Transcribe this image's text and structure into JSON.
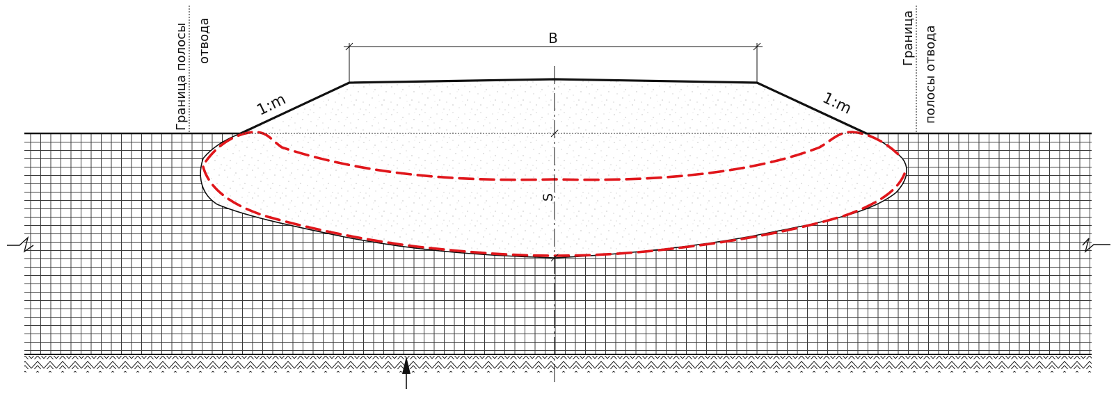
{
  "labels": {
    "width_b": "B",
    "slope_left": "1:m",
    "slope_right": "1:m",
    "settlement_s": "S",
    "left_boundary_line1": "Граница полосы",
    "left_boundary_line2": "отвода",
    "right_boundary_line1": "Граница",
    "right_boundary_line2": "полосы отвода"
  },
  "colors": {
    "outline": "#111111",
    "red_dashed": "#e0161b",
    "grid": "#444444",
    "fill_white": "#ffffff"
  },
  "icons": {
    "arrow": "up-arrow-icon",
    "break": "break-symbol-icon",
    "hatch": "soil-hatch-icon"
  }
}
